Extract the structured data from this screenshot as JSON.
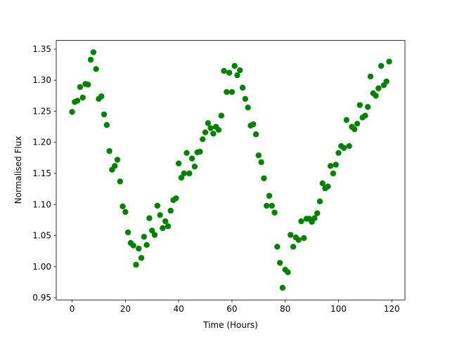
{
  "chart_data": {
    "type": "scatter",
    "xlabel": "Time (Hours)",
    "ylabel": "Normalised Flux",
    "color": "#008000",
    "x": [
      0,
      1,
      2,
      3,
      4,
      5,
      6,
      7,
      8,
      9,
      10,
      11,
      12,
      13,
      14,
      15,
      16,
      17,
      18,
      19,
      20,
      21,
      22,
      23,
      24,
      25,
      26,
      27,
      28,
      29,
      30,
      31,
      32,
      33,
      34,
      35,
      36,
      37,
      38,
      39,
      40,
      41,
      42,
      43,
      44,
      45,
      46,
      47,
      48,
      49,
      50,
      51,
      52,
      53,
      54,
      55,
      56,
      57,
      58,
      59,
      60,
      61,
      62,
      63,
      64,
      65,
      66,
      67,
      68,
      69,
      70,
      71,
      72,
      73,
      74,
      75,
      76,
      77,
      78,
      79,
      80,
      81,
      82,
      83,
      84,
      85,
      86,
      87,
      88,
      89,
      90,
      91,
      92,
      93,
      94,
      95,
      96,
      97,
      98,
      99,
      100,
      101,
      102,
      103,
      104,
      105,
      106,
      107,
      108,
      109,
      110,
      111,
      112,
      113,
      114,
      115,
      116,
      117,
      118,
      119
    ],
    "values": [
      1.249,
      1.265,
      1.267,
      1.289,
      1.272,
      1.294,
      1.293,
      1.333,
      1.345,
      1.318,
      1.27,
      1.274,
      1.245,
      1.228,
      1.186,
      1.156,
      1.162,
      1.172,
      1.137,
      1.097,
      1.088,
      1.055,
      1.038,
      1.034,
      1.003,
      1.029,
      1.014,
      1.048,
      1.035,
      1.078,
      1.058,
      1.051,
      1.098,
      1.083,
      1.062,
      1.073,
      1.065,
      1.09,
      1.107,
      1.11,
      1.166,
      1.143,
      1.15,
      1.183,
      1.15,
      1.174,
      1.161,
      1.184,
      1.185,
      1.205,
      1.216,
      1.231,
      1.223,
      1.214,
      1.225,
      1.22,
      1.243,
      1.315,
      1.281,
      1.312,
      1.281,
      1.323,
      1.308,
      1.316,
      1.288,
      1.27,
      1.256,
      1.227,
      1.229,
      1.213,
      1.179,
      1.168,
      1.142,
      1.098,
      1.114,
      1.098,
      1.087,
      1.032,
      1.006,
      0.966,
      0.995,
      0.991,
      1.051,
      1.032,
      1.047,
      1.043,
      1.073,
      1.046,
      1.077,
      1.077,
      1.072,
      1.078,
      1.086,
      1.105,
      1.134,
      1.126,
      1.129,
      1.162,
      1.15,
      1.164,
      1.183,
      1.194,
      1.191,
      1.236,
      1.194,
      1.225,
      1.221,
      1.23,
      1.26,
      1.24,
      1.243,
      1.257,
      1.306,
      1.279,
      1.275,
      1.287,
      1.323,
      1.292,
      1.298,
      1.33
    ],
    "xlim": [
      -5.95,
      124.95
    ],
    "xticks": [
      0,
      20,
      40,
      60,
      80,
      100,
      120
    ],
    "ylim": [
      0.9464,
      1.364
    ],
    "yticks": [
      0.95,
      {
        "value": 1.0,
        "label": "1.00"
      },
      1.05,
      {
        "value": 1.1,
        "label": "1.10"
      },
      1.15,
      {
        "value": 1.2,
        "label": "1.20"
      },
      1.25,
      {
        "value": 1.3,
        "label": "1.30"
      },
      1.35
    ]
  }
}
